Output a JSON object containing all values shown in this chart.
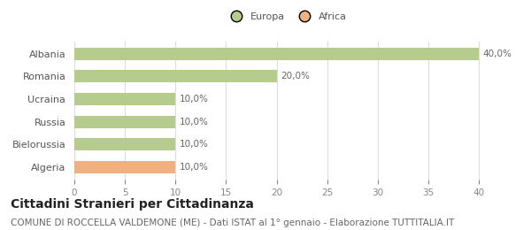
{
  "categories": [
    "Albania",
    "Romania",
    "Ucraina",
    "Russia",
    "Bielorussia",
    "Algeria"
  ],
  "values": [
    40.0,
    20.0,
    10.0,
    10.0,
    10.0,
    10.0
  ],
  "bar_colors": [
    "#b5cc8e",
    "#b5cc8e",
    "#b5cc8e",
    "#b5cc8e",
    "#b5cc8e",
    "#f0b080"
  ],
  "value_labels": [
    "40,0%",
    "20,0%",
    "10,0%",
    "10,0%",
    "10,0%",
    "10,0%"
  ],
  "legend_labels": [
    "Europa",
    "Africa"
  ],
  "legend_colors": [
    "#b5cc8e",
    "#f0b080"
  ],
  "xlim": [
    0,
    42
  ],
  "xticks": [
    0,
    5,
    10,
    15,
    20,
    25,
    30,
    35,
    40
  ],
  "title": "Cittadini Stranieri per Cittadinanza",
  "subtitle": "COMUNE DI ROCCELLA VALDEMONE (ME) - Dati ISTAT al 1° gennaio - Elaborazione TUTTITALIA.IT",
  "background_color": "#ffffff",
  "grid_color": "#dddddd",
  "title_fontsize": 10,
  "subtitle_fontsize": 7.5,
  "label_fontsize": 8,
  "tick_fontsize": 7.5,
  "value_fontsize": 7.5
}
